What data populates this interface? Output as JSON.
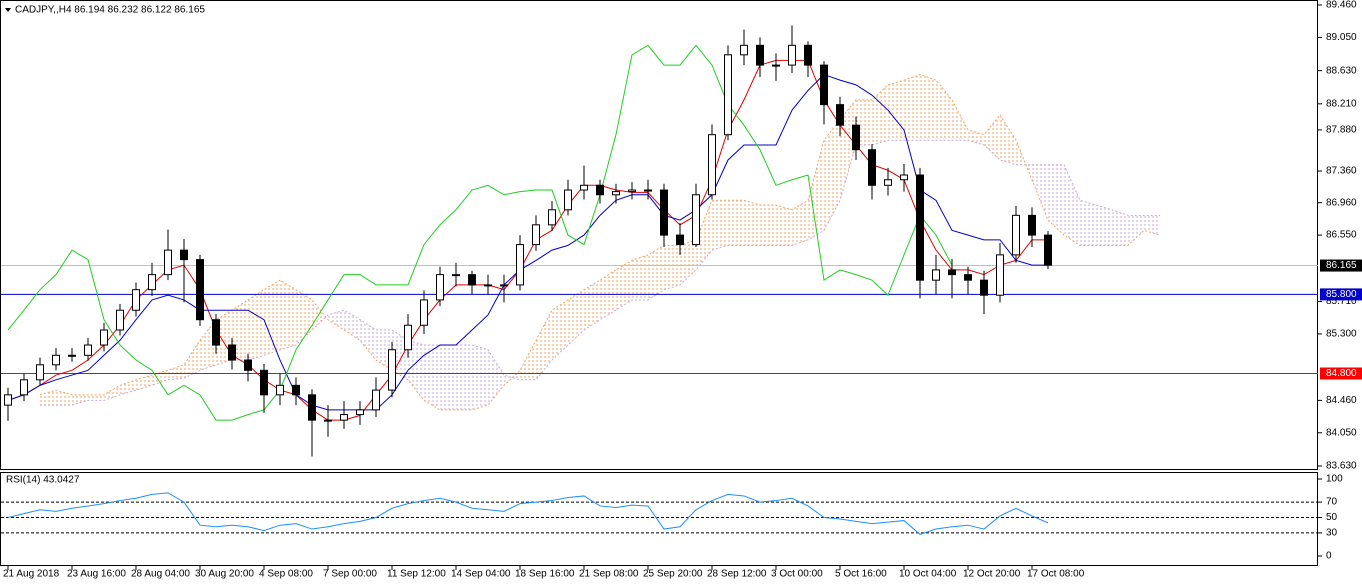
{
  "chart_data": [
    {
      "type": "candlestick",
      "title": "CADJPY,,H4  86.194 86.232 86.122 86.165",
      "categories": [
        "21 Aug 2018",
        null,
        null,
        null,
        "23 Aug 16:00",
        null,
        null,
        null,
        "28 Aug 04:00",
        null,
        null,
        null,
        "30 Aug 20:00",
        null,
        null,
        null,
        "4 Sep 08:00",
        null,
        null,
        null,
        "7 Sep 00:00",
        null,
        null,
        null,
        "11 Sep 12:00",
        null,
        null,
        null,
        "14 Sep 04:00",
        null,
        null,
        null,
        "18 Sep 16:00",
        null,
        null,
        null,
        "21 Sep 08:00",
        null,
        null,
        null,
        "25 Sep 20:00",
        null,
        null,
        null,
        "28 Sep 12:00",
        null,
        null,
        null,
        "3 Oct 00:00",
        null,
        null,
        null,
        "5 Oct 16:00",
        null,
        null,
        null,
        "10 Oct 04:00",
        null,
        null,
        null,
        "12 Oct 20:00",
        null,
        null,
        null,
        "17 Oct 08:00",
        null,
        null,
        null,
        null,
        null,
        null,
        null,
        null
      ],
      "open": [
        84.4,
        84.53,
        84.72,
        84.91,
        85.03,
        85.03,
        85.16,
        85.35,
        85.6,
        85.86,
        86.05,
        86.36,
        86.24,
        85.48,
        85.16,
        84.97,
        84.84,
        84.53,
        84.65,
        84.53,
        84.21,
        84.21,
        84.28,
        84.34,
        84.59,
        85.1,
        85.41,
        85.73,
        86.05,
        86.05,
        85.92,
        85.92,
        85.92,
        86.43,
        86.68,
        86.87,
        87.12,
        87.18,
        87.06,
        87.1,
        87.12,
        87.12,
        86.55,
        86.43,
        87.06,
        87.82,
        88.83,
        88.95,
        88.7,
        88.7,
        88.95,
        88.7,
        88.2,
        87.94,
        87.63,
        87.18,
        87.25,
        87.31,
        85.98,
        86.11,
        86.05,
        85.98,
        85.79,
        86.3,
        86.8,
        86.55,
        null,
        null,
        null,
        null,
        null,
        null,
        null
      ],
      "high": [
        84.62,
        84.8,
        85.0,
        85.12,
        85.12,
        85.25,
        85.44,
        85.68,
        85.95,
        86.2,
        86.62,
        86.5,
        86.3,
        85.55,
        85.25,
        85.05,
        84.92,
        84.8,
        84.75,
        84.6,
        84.4,
        84.45,
        84.45,
        84.75,
        85.2,
        85.55,
        85.85,
        86.15,
        86.2,
        86.1,
        86.05,
        86.05,
        86.55,
        86.8,
        86.98,
        87.25,
        87.43,
        87.25,
        87.2,
        87.22,
        87.25,
        87.2,
        86.7,
        87.2,
        87.95,
        88.95,
        89.15,
        89.05,
        88.85,
        89.2,
        89.0,
        88.75,
        88.3,
        88.05,
        87.7,
        87.4,
        87.45,
        87.4,
        86.3,
        86.25,
        86.15,
        86.1,
        86.45,
        86.92,
        86.9,
        86.6,
        null,
        null,
        null,
        null,
        null,
        null,
        null
      ],
      "low": [
        84.2,
        84.45,
        84.65,
        84.84,
        84.95,
        84.96,
        85.08,
        85.28,
        85.52,
        85.78,
        85.98,
        85.7,
        85.4,
        85.05,
        84.85,
        84.7,
        84.3,
        84.4,
        84.4,
        83.75,
        84.0,
        84.1,
        84.15,
        84.25,
        84.5,
        85.0,
        85.3,
        85.65,
        85.9,
        85.8,
        85.8,
        85.7,
        85.85,
        86.35,
        86.6,
        86.8,
        87.0,
        86.95,
        86.95,
        87.0,
        87.0,
        86.4,
        86.3,
        86.4,
        87.0,
        87.75,
        88.7,
        88.55,
        88.5,
        88.6,
        88.55,
        87.95,
        87.8,
        87.5,
        87.0,
        87.05,
        87.1,
        85.75,
        85.8,
        85.75,
        85.8,
        85.55,
        85.7,
        86.2,
        86.4,
        86.12,
        null,
        null,
        null,
        null,
        null,
        null,
        null
      ],
      "close": [
        84.53,
        84.72,
        84.91,
        85.03,
        85.03,
        85.16,
        85.35,
        85.6,
        85.86,
        86.05,
        86.36,
        86.24,
        85.48,
        85.16,
        84.97,
        84.84,
        84.53,
        84.65,
        84.53,
        84.21,
        84.21,
        84.28,
        84.34,
        84.59,
        85.1,
        85.41,
        85.73,
        86.05,
        86.05,
        85.92,
        85.92,
        85.92,
        86.43,
        86.68,
        86.87,
        87.12,
        87.18,
        87.06,
        87.1,
        87.12,
        87.12,
        86.55,
        86.43,
        87.06,
        87.82,
        88.83,
        88.95,
        88.7,
        88.7,
        88.95,
        88.7,
        88.2,
        87.94,
        87.63,
        87.18,
        87.25,
        87.31,
        85.98,
        86.11,
        86.05,
        85.98,
        85.79,
        86.3,
        86.8,
        86.55,
        86.17,
        null,
        null,
        null,
        null,
        null,
        null,
        null
      ],
      "bull_color": "#ffffff",
      "bear_color": "#000000",
      "wick_color": "#000000",
      "lines": [
        {
          "color": "#e00000",
          "values": [
            84.46,
            84.53,
            84.65,
            84.78,
            84.84,
            84.97,
            85.16,
            85.41,
            85.73,
            85.92,
            86.11,
            86.17,
            85.86,
            85.35,
            85.03,
            84.91,
            84.72,
            84.59,
            84.53,
            84.34,
            84.21,
            84.21,
            84.27,
            84.53,
            84.78,
            85.16,
            85.48,
            85.73,
            85.92,
            85.92,
            85.92,
            85.86,
            86.11,
            86.49,
            86.61,
            86.93,
            87.18,
            87.18,
            87.12,
            87.09,
            87.09,
            86.87,
            86.68,
            86.8,
            87.25,
            87.88,
            88.26,
            88.7,
            88.76,
            88.76,
            88.76,
            88.26,
            87.94,
            87.69,
            87.44,
            87.37,
            87.25,
            86.74,
            86.36,
            86.11,
            86.11,
            86.05,
            86.17,
            86.23,
            86.49,
            86.49,
            null,
            null,
            null,
            null,
            null,
            null,
            null
          ]
        },
        {
          "color": "#0000cd",
          "values": [
            84.46,
            84.53,
            84.65,
            84.72,
            84.78,
            84.84,
            85.03,
            85.22,
            85.48,
            85.73,
            85.79,
            85.73,
            85.6,
            85.6,
            85.6,
            85.6,
            85.48,
            84.97,
            84.53,
            84.4,
            84.34,
            84.34,
            84.34,
            84.34,
            84.53,
            84.84,
            85.03,
            85.16,
            85.16,
            85.35,
            85.54,
            85.92,
            86.11,
            86.23,
            86.36,
            86.42,
            86.55,
            86.8,
            86.99,
            87.06,
            87.06,
            86.8,
            86.74,
            86.87,
            87.06,
            87.5,
            87.69,
            87.69,
            87.69,
            88.13,
            88.38,
            88.58,
            88.51,
            88.45,
            88.32,
            88.13,
            87.88,
            87.12,
            86.99,
            86.61,
            86.55,
            86.49,
            86.49,
            86.23,
            86.17,
            86.17,
            null,
            null,
            null,
            null,
            null,
            null,
            null
          ]
        },
        {
          "color": "#22cc22",
          "values": [
            85.35,
            85.6,
            85.86,
            86.05,
            86.36,
            86.24,
            85.48,
            85.16,
            84.97,
            84.84,
            84.53,
            84.65,
            84.53,
            84.21,
            84.21,
            84.28,
            84.34,
            84.59,
            85.1,
            85.41,
            85.73,
            86.05,
            86.05,
            85.92,
            85.92,
            85.92,
            86.43,
            86.68,
            86.87,
            87.12,
            87.18,
            87.06,
            87.1,
            87.12,
            87.12,
            86.55,
            86.43,
            87.06,
            87.82,
            88.83,
            88.95,
            88.7,
            88.7,
            88.95,
            88.7,
            88.2,
            87.94,
            87.63,
            87.18,
            87.25,
            87.31,
            85.98,
            86.11,
            86.05,
            85.98,
            85.79,
            86.3,
            86.8,
            86.55,
            86.17,
            null,
            null,
            null,
            null,
            null,
            null,
            null,
            null,
            null,
            null,
            null,
            null,
            null
          ]
        }
      ],
      "cloud": {
        "up_color": "#f4a460",
        "down_color": "#c8a8d8",
        "span_a": [
          null,
          null,
          84.53,
          84.59,
          84.53,
          84.53,
          84.53,
          84.65,
          84.72,
          84.78,
          84.84,
          84.91,
          85.22,
          85.48,
          85.6,
          85.73,
          85.86,
          85.98,
          85.86,
          85.73,
          85.48,
          85.35,
          85.22,
          84.97,
          84.84,
          84.72,
          84.46,
          84.34,
          84.34,
          84.34,
          84.4,
          84.65,
          84.84,
          85.22,
          85.6,
          85.73,
          85.86,
          85.98,
          86.11,
          86.23,
          86.3,
          86.42,
          86.42,
          86.49,
          86.99,
          86.99,
          86.99,
          86.93,
          86.93,
          86.87,
          86.99,
          87.75,
          88.01,
          88.26,
          88.26,
          88.45,
          88.51,
          88.58,
          88.51,
          88.26,
          87.88,
          87.82,
          88.07,
          87.75,
          87.25,
          86.74,
          86.55,
          86.42,
          86.42,
          86.42,
          86.42,
          86.61,
          86.55
        ],
        "span_b": [
          null,
          null,
          84.4,
          84.4,
          84.4,
          84.46,
          84.46,
          84.53,
          84.59,
          84.65,
          84.72,
          84.74,
          84.84,
          84.91,
          84.97,
          84.97,
          85.03,
          85.1,
          85.16,
          85.35,
          85.54,
          85.6,
          85.48,
          85.35,
          85.35,
          85.22,
          85.16,
          85.16,
          85.16,
          85.16,
          85.1,
          84.78,
          84.72,
          84.72,
          84.97,
          85.16,
          85.35,
          85.48,
          85.6,
          85.73,
          85.73,
          85.86,
          85.92,
          86.11,
          86.36,
          86.42,
          86.42,
          86.42,
          86.42,
          86.42,
          86.49,
          86.61,
          86.99,
          87.69,
          87.69,
          87.75,
          87.75,
          87.75,
          87.75,
          87.75,
          87.75,
          87.69,
          87.5,
          87.44,
          87.44,
          87.44,
          87.44,
          86.99,
          86.93,
          86.87,
          86.8,
          86.8,
          86.8
        ]
      },
      "ylim": [
        83.63,
        89.46
      ],
      "yticks": [
        {
          "value": 89.46,
          "label": "89.460"
        },
        {
          "value": 89.05,
          "label": "89.050"
        },
        {
          "value": 88.63,
          "label": "88.630"
        },
        {
          "value": 88.21,
          "label": "88.210"
        },
        {
          "value": 87.88,
          "label": "87.880"
        },
        {
          "value": 87.36,
          "label": "87.360"
        },
        {
          "value": 86.96,
          "label": "86.960"
        },
        {
          "value": 86.55,
          "label": "86.550"
        },
        {
          "value": 85.71,
          "label": "85.710"
        },
        {
          "value": 85.3,
          "label": "85.300"
        },
        {
          "value": 84.46,
          "label": "84.460"
        },
        {
          "value": 84.05,
          "label": "84.050"
        },
        {
          "value": 83.63,
          "label": "83.630"
        }
      ],
      "hlines": [
        {
          "value": 85.8,
          "label": "85.800",
          "color": "#0000cd"
        },
        {
          "value": 84.8,
          "label": "84.800",
          "color": "#ff0000"
        }
      ],
      "last_price": {
        "value": 86.165,
        "label": "86.165",
        "color": "#c0c0c0"
      }
    },
    {
      "type": "line",
      "title": "RSI(14) 43.0427",
      "color": "#1e90ff",
      "values": [
        50,
        55,
        60,
        58,
        62,
        65,
        68,
        72,
        75,
        80,
        82,
        70,
        40,
        38,
        40,
        38,
        33,
        40,
        42,
        35,
        38,
        42,
        45,
        50,
        62,
        68,
        72,
        75,
        70,
        62,
        60,
        58,
        68,
        70,
        72,
        76,
        78,
        65,
        63,
        66,
        65,
        35,
        38,
        60,
        72,
        80,
        78,
        70,
        72,
        75,
        65,
        50,
        48,
        45,
        42,
        44,
        46,
        28,
        35,
        38,
        40,
        35,
        52,
        62,
        52,
        43
      ],
      "ylim": [
        0,
        100
      ],
      "yticks": [
        0,
        30,
        50,
        70,
        100
      ],
      "levels": [
        30,
        50,
        70
      ]
    }
  ]
}
